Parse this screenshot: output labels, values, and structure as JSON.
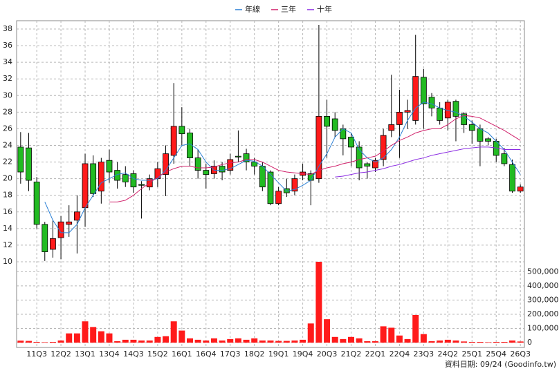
{
  "chart_data": {
    "type": "candlestick",
    "legend": "top",
    "grid": true,
    "up_color": "#ff1a1a",
    "down_color": "#22bb22",
    "footer": "資料日期: 09/24 (Goodinfo.tw)",
    "categories": [
      null,
      null,
      "11Q3",
      null,
      null,
      "12Q2",
      null,
      null,
      "13Q1",
      null,
      null,
      "13Q4",
      null,
      null,
      "14Q3",
      null,
      null,
      "15Q2",
      null,
      null,
      "16Q1",
      null,
      null,
      "16Q4",
      null,
      null,
      "17Q3",
      null,
      null,
      "18Q2",
      null,
      null,
      "19Q1",
      null,
      null,
      "19Q4",
      null,
      null,
      "20Q3",
      null,
      null,
      "21Q2",
      null,
      null,
      "22Q1",
      null,
      null,
      "22Q4",
      null,
      null,
      "23Q3",
      null,
      null,
      "24Q2",
      null,
      null,
      "25Q1",
      null,
      null,
      "25Q4",
      null,
      null,
      "26Q3"
    ],
    "open": [
      23.8,
      23.7,
      19.6,
      14.5,
      11.5,
      12.9,
      14.5,
      15,
      16.5,
      21.8,
      18.5,
      22.2,
      21,
      20.5,
      20.6,
      19.3,
      19,
      20,
      20.5,
      22.8,
      26.3,
      25.5,
      22.5,
      21,
      20.6,
      21.5,
      21,
      22.7,
      23,
      22,
      21.5,
      20.8,
      17,
      18.8,
      18.5,
      20.4,
      20.6,
      20,
      27.5,
      27.2,
      26,
      25,
      23.8,
      21.8,
      21.3,
      22.3,
      25.8,
      26.5,
      28,
      27,
      32.2,
      29.8,
      28.5,
      27.3,
      29.3,
      27.8,
      26.5,
      26,
      24.8,
      24.5,
      23,
      21.7,
      18.5
    ],
    "high": [
      25.6,
      25.5,
      20.2,
      14.8,
      15,
      15.5,
      16.8,
      18,
      23,
      22.8,
      22.5,
      23.5,
      22,
      21.5,
      21,
      19.7,
      20.5,
      22,
      24,
      31.5,
      28.6,
      26,
      23.5,
      21.8,
      22.2,
      22,
      23,
      25.8,
      23.6,
      22.5,
      22,
      21,
      19,
      20,
      20.5,
      21.8,
      21,
      38.5,
      29.5,
      28,
      26.5,
      25.5,
      24.5,
      22,
      22.5,
      26,
      32.5,
      30.7,
      29.5,
      37.3,
      33.2,
      30.3,
      29.2,
      29.5,
      29.5,
      28,
      27,
      26.5,
      25,
      24.8,
      23.7,
      22.3,
      19.3
    ],
    "low": [
      19.4,
      18.5,
      14,
      10.1,
      10.5,
      10.3,
      13,
      11,
      14.2,
      17.8,
      17,
      19.5,
      18.8,
      19,
      18.3,
      15.2,
      18.6,
      19,
      17.9,
      21.8,
      24,
      21.5,
      20,
      18.8,
      20,
      19.8,
      20.5,
      22,
      21,
      20.5,
      18.5,
      16.8,
      16.8,
      17.8,
      18,
      19.8,
      16.8,
      19.5,
      22.5,
      25,
      22.8,
      21.5,
      19.8,
      20,
      20.8,
      21.5,
      25,
      22.5,
      26,
      26.5,
      26,
      27.5,
      26.5,
      25.8,
      24.5,
      25.5,
      24.2,
      21.5,
      24,
      22,
      21.5,
      18.3,
      18.3
    ],
    "close": [
      20.8,
      19.8,
      14.5,
      11.2,
      12.8,
      14.8,
      14.8,
      16,
      21.8,
      18.2,
      22,
      20.8,
      19.8,
      19.6,
      19,
      19.2,
      20,
      21.2,
      23,
      26.3,
      25.4,
      22.5,
      21,
      20.5,
      21.5,
      20.8,
      22.3,
      22.6,
      22,
      21.5,
      19,
      17,
      18.5,
      18.3,
      20,
      20.8,
      19.8,
      27.5,
      26.3,
      25.8,
      24.8,
      23.8,
      21.3,
      21.5,
      22.2,
      25.2,
      26.5,
      28,
      28.2,
      32.3,
      29,
      28.5,
      27,
      29.2,
      27.5,
      26.5,
      25.8,
      24.5,
      24.5,
      22.8,
      21.8,
      18.5,
      19
    ],
    "volume": [
      14000,
      12000,
      5000,
      3000,
      5000,
      15000,
      65000,
      65000,
      150000,
      110000,
      80000,
      65000,
      10000,
      20000,
      20000,
      15000,
      15000,
      40000,
      45000,
      150000,
      85000,
      30000,
      20000,
      15000,
      30000,
      15000,
      25000,
      30000,
      20000,
      30000,
      15000,
      15000,
      12000,
      12000,
      15000,
      20000,
      135000,
      570000,
      165000,
      40000,
      25000,
      40000,
      30000,
      10000,
      10000,
      115000,
      105000,
      50000,
      25000,
      195000,
      60000,
      10000,
      15000,
      20000,
      15000,
      8000,
      5000,
      5000,
      3000,
      5000,
      5000,
      15000,
      8000
    ],
    "volume_color": "#ff1a1a",
    "series": [
      {
        "name": "年線",
        "color": "#2a7fd4",
        "values": [
          null,
          null,
          null,
          17.2,
          15,
          13.5,
          13.5,
          14.5,
          16.5,
          18,
          19.5,
          20,
          20.5,
          20.7,
          20,
          19.8,
          19.8,
          20,
          21,
          22.5,
          24,
          24.2,
          23.5,
          22,
          21,
          21,
          21.2,
          21.7,
          22.2,
          22.1,
          21.5,
          20.5,
          19.5,
          18.5,
          18.7,
          19.2,
          19.8,
          21.5,
          23,
          25,
          26,
          25.5,
          23.5,
          22.5,
          22,
          22.5,
          23.5,
          25,
          27,
          28.5,
          29.2,
          29,
          28.5,
          28.2,
          28,
          27.5,
          26.8,
          26,
          25.5,
          24.5,
          23.5,
          22,
          20.5
        ]
      },
      {
        "name": "三年",
        "color": "#d0206a",
        "values": [
          null,
          null,
          null,
          null,
          null,
          null,
          null,
          null,
          null,
          null,
          null,
          17.2,
          17.2,
          17.4,
          18,
          18.8,
          19.5,
          20.2,
          20.8,
          21.2,
          21.5,
          21.5,
          21.3,
          21.3,
          21.4,
          21.7,
          21.9,
          22,
          22.3,
          22.3,
          22,
          21.5,
          21,
          20.8,
          20.7,
          20.6,
          20.5,
          21,
          21.3,
          21.5,
          21.8,
          22,
          22.3,
          22.5,
          22.7,
          23.3,
          24,
          24.6,
          25,
          25.5,
          25.8,
          26,
          26,
          26.5,
          27.2,
          27.6,
          27.5,
          27.3,
          26.8,
          26.3,
          25.8,
          25.2,
          24.6
        ]
      },
      {
        "name": "十年",
        "color": "#8a2be2",
        "values": [
          null,
          null,
          null,
          null,
          null,
          null,
          null,
          null,
          null,
          null,
          null,
          null,
          null,
          null,
          null,
          null,
          null,
          null,
          null,
          null,
          null,
          null,
          null,
          null,
          null,
          null,
          null,
          null,
          null,
          null,
          null,
          null,
          null,
          null,
          null,
          null,
          null,
          null,
          null,
          20.2,
          20.3,
          20.5,
          20.7,
          20.8,
          21,
          21.2,
          21.5,
          21.7,
          22,
          22.3,
          22.5,
          22.8,
          23,
          23.2,
          23.4,
          23.6,
          23.7,
          23.8,
          23.8,
          23.7,
          23.5,
          23.5,
          23.5
        ]
      }
    ],
    "ylim": [
      10,
      39
    ],
    "yticks": [
      10,
      12,
      14,
      16,
      18,
      20,
      22,
      24,
      26,
      28,
      30,
      32,
      34,
      36,
      38
    ],
    "y2lim": [
      0,
      570000
    ],
    "y2ticks": [
      0,
      {
        "value": 100000,
        "label": "100,000"
      },
      {
        "value": 200000,
        "label": "200,000"
      },
      {
        "value": 300000,
        "label": "300,000"
      },
      {
        "value": 400000,
        "label": "400,000"
      },
      {
        "value": 500000,
        "label": "500,000"
      }
    ]
  }
}
